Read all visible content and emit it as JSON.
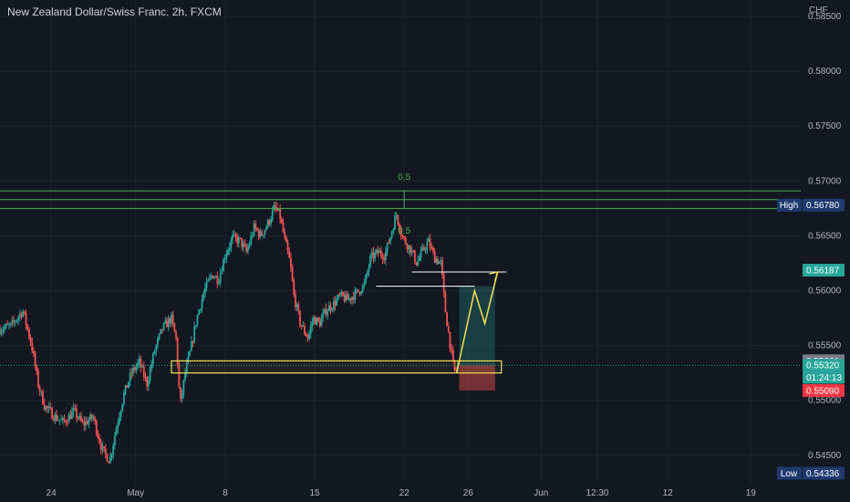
{
  "title": "New Zealand Dollar/Swiss Franc, 2h, FXCM",
  "currency": "CHF",
  "chart_data": {
    "type": "candlestick",
    "ylim": [
      0.5424,
      0.5865
    ],
    "y_ticks": [
      "0.58500",
      "0.58000",
      "0.57500",
      "0.57000",
      "0.56500",
      "0.56000",
      "0.55500",
      "0.55000",
      "0.54500"
    ],
    "y_tick_values": [
      0.585,
      0.58,
      0.575,
      0.57,
      0.565,
      0.56,
      0.555,
      0.55,
      0.545
    ],
    "x_ticks": [
      "24",
      "May",
      "8",
      "15",
      "22",
      "26",
      "Jun",
      "12:30",
      "12",
      "19"
    ],
    "x_tick_positions": [
      0.4,
      7,
      14,
      21,
      28,
      33,
      38.7,
      43.1,
      48.6,
      55.1
    ],
    "x_range": [
      -3.6,
      59
    ],
    "price_path": [
      [
        -3.6,
        0.5565
      ],
      [
        -2.6,
        0.5568
      ],
      [
        -1.7,
        0.5582
      ],
      [
        -1,
        0.555
      ],
      [
        -0.5,
        0.5515
      ],
      [
        0,
        0.5495
      ],
      [
        0.8,
        0.5485
      ],
      [
        1.5,
        0.548
      ],
      [
        2.3,
        0.549
      ],
      [
        3,
        0.5478
      ],
      [
        3.8,
        0.5485
      ],
      [
        4.5,
        0.5455
      ],
      [
        5.1,
        0.5445
      ],
      [
        5.6,
        0.5475
      ],
      [
        6.2,
        0.5505
      ],
      [
        6.8,
        0.5525
      ],
      [
        7.4,
        0.5535
      ],
      [
        8,
        0.5515
      ],
      [
        8.6,
        0.5545
      ],
      [
        9.2,
        0.5565
      ],
      [
        9.9,
        0.5575
      ],
      [
        10.3,
        0.5555
      ],
      [
        10.6,
        0.5495
      ],
      [
        11,
        0.5525
      ],
      [
        11.4,
        0.5545
      ],
      [
        11.9,
        0.5575
      ],
      [
        12.5,
        0.56
      ],
      [
        13.1,
        0.5615
      ],
      [
        13.6,
        0.561
      ],
      [
        14.1,
        0.5632
      ],
      [
        14.7,
        0.5648
      ],
      [
        15.3,
        0.5645
      ],
      [
        15.8,
        0.5635
      ],
      [
        16.4,
        0.5658
      ],
      [
        16.9,
        0.565
      ],
      [
        17.5,
        0.5662
      ],
      [
        18,
        0.5676
      ],
      [
        18.4,
        0.5668
      ],
      [
        18.8,
        0.5645
      ],
      [
        19.2,
        0.5625
      ],
      [
        19.5,
        0.5595
      ],
      [
        20,
        0.557
      ],
      [
        20.6,
        0.5557
      ],
      [
        21,
        0.5575
      ],
      [
        21.5,
        0.557
      ],
      [
        22,
        0.5582
      ],
      [
        22.6,
        0.5588
      ],
      [
        23.1,
        0.5595
      ],
      [
        23.7,
        0.5592
      ],
      [
        24.4,
        0.5598
      ],
      [
        25,
        0.5605
      ],
      [
        25.5,
        0.563
      ],
      [
        26.1,
        0.5635
      ],
      [
        26.6,
        0.5632
      ],
      [
        27.1,
        0.5652
      ],
      [
        27.5,
        0.567
      ],
      [
        28,
        0.5648
      ],
      [
        28.6,
        0.5638
      ],
      [
        29.1,
        0.5625
      ],
      [
        29.5,
        0.5635
      ],
      [
        30,
        0.5645
      ],
      [
        30.5,
        0.563
      ],
      [
        31,
        0.5625
      ],
      [
        31.3,
        0.5585
      ],
      [
        31.6,
        0.556
      ],
      [
        31.9,
        0.5535
      ],
      [
        32.1,
        0.5525
      ],
      [
        32.3,
        0.5532
      ]
    ],
    "horizontal_lines": [
      {
        "price": 0.5691,
        "color": "#4caf50"
      },
      {
        "price": 0.5683,
        "color": "#4caf50"
      },
      {
        "price": 0.5675,
        "color": "#4caf50"
      },
      {
        "price": 0.5532,
        "color": "#26a69a",
        "dotted": true
      }
    ],
    "fib_labels": [
      {
        "text": "0.5",
        "x": 28,
        "price": 0.5701
      },
      {
        "text": "0.5",
        "x": 28,
        "price": 0.5652
      }
    ],
    "demand_zone": {
      "x0": 9.8,
      "x1": 35.6,
      "top": 0.5536,
      "bottom": 0.5525
    },
    "resistance_lines": [
      {
        "x0": 25.8,
        "x1": 33.5,
        "price": 0.5604
      },
      {
        "x0": 28.6,
        "x1": 36,
        "price": 0.5617
      }
    ],
    "position": {
      "x0": 32.3,
      "x1": 35.1,
      "entry": 0.5532,
      "target": 0.5604,
      "stop": 0.5509
    },
    "projection_path": [
      [
        32.1,
        0.5525
      ],
      [
        33.5,
        0.56
      ],
      [
        34.3,
        0.557
      ],
      [
        35.3,
        0.5617
      ]
    ],
    "price_tags": [
      {
        "label": "High",
        "value": "0.56780",
        "price": 0.5678,
        "bg": "#1e3a6e"
      },
      {
        "label": "",
        "value": "0.56187",
        "price": 0.56187,
        "bg": "#26a69a"
      },
      {
        "label": "",
        "value": "0.55361",
        "price": 0.55361,
        "bg": "#787b86"
      },
      {
        "label": "",
        "value": "0.55320",
        "price": 0.5532,
        "bg": "#26a69a"
      },
      {
        "label": "",
        "value": "01:24:13",
        "price": 0.5521,
        "bg": "#26a69a"
      },
      {
        "label": "",
        "value": "0.55090",
        "price": 0.5509,
        "bg": "#f23645"
      },
      {
        "label": "Low",
        "value": "0.54336",
        "price": 0.54336,
        "bg": "#1e3a6e"
      }
    ],
    "colors": {
      "up": "#26a69a",
      "down": "#ef5350",
      "zone": "#f5e050",
      "grid": "#1e222d"
    }
  }
}
